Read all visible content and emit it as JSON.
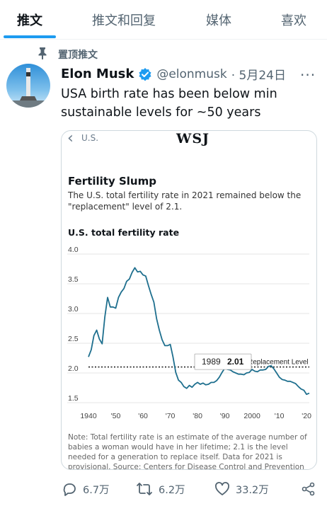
{
  "tabs": [
    {
      "label": "推文",
      "active": true
    },
    {
      "label": "推文和回复",
      "active": false
    },
    {
      "label": "媒体",
      "active": false
    },
    {
      "label": "喜欢",
      "active": false
    }
  ],
  "pinned_label": "置顶推文",
  "tweet": {
    "name": "Elon Musk",
    "handle": "@elonmusk",
    "date": "· 5月24日",
    "more": "···",
    "text": "USA birth rate has been below min sustainable levels for ~50 years"
  },
  "card": {
    "back_label": "U.S.",
    "logo": "WSJ",
    "title": "Fertility Slump",
    "subtitle": "The U.S. total fertility rate in 2021 remained below the \"replacement\" level of 2.1.",
    "ylabel": "U.S. total fertility rate",
    "note": "Note: Total fertility rate is an estimate of the average number of babies a woman would have in her lifetime; 2.1 is the level needed for a generation to replace itself. Data for 2021 is provisional. Source: Centers for Disease Control and Prevention"
  },
  "chart_data": {
    "type": "line",
    "ylabel": "U.S. total fertility rate",
    "ylim": [
      1.5,
      4.0
    ],
    "xlim": [
      1940,
      2021
    ],
    "xticks": [
      "1940",
      "'50",
      "'60",
      "'70",
      "'80",
      "'90",
      "2000",
      "'10",
      "'20"
    ],
    "yticks": [
      "4.0",
      "3.5",
      "3.0",
      "2.5",
      "2.0",
      "1.5"
    ],
    "series": [
      {
        "x": [
          1940,
          1941,
          1942,
          1943,
          1944,
          1945,
          1946,
          1947,
          1948,
          1949,
          1950,
          1951,
          1952,
          1953,
          1954,
          1955,
          1956,
          1957,
          1958,
          1959,
          1960,
          1961,
          1962,
          1963,
          1964,
          1965,
          1966,
          1967,
          1968,
          1969,
          1970,
          1971,
          1972,
          1973,
          1974,
          1975,
          1976,
          1977,
          1978,
          1979,
          1980,
          1981,
          1982,
          1983,
          1984,
          1985,
          1986,
          1987,
          1988,
          1989,
          1990,
          1991,
          1992,
          1993,
          1994,
          1995,
          1996,
          1997,
          1998,
          1999,
          2000,
          2001,
          2002,
          2003,
          2004,
          2005,
          2006,
          2007,
          2008,
          2009,
          2010,
          2011,
          2012,
          2013,
          2014,
          2015,
          2016,
          2017,
          2018,
          2019,
          2020,
          2021
        ],
        "values": [
          2.27,
          2.39,
          2.63,
          2.72,
          2.57,
          2.49,
          2.94,
          3.27,
          3.11,
          3.11,
          3.09,
          3.27,
          3.36,
          3.42,
          3.54,
          3.58,
          3.69,
          3.77,
          3.7,
          3.71,
          3.65,
          3.63,
          3.47,
          3.32,
          3.19,
          2.91,
          2.72,
          2.56,
          2.46,
          2.46,
          2.48,
          2.27,
          2.01,
          1.88,
          1.84,
          1.77,
          1.74,
          1.79,
          1.76,
          1.81,
          1.84,
          1.81,
          1.83,
          1.8,
          1.81,
          1.84,
          1.84,
          1.87,
          1.93,
          2.01,
          2.08,
          2.06,
          2.05,
          2.02,
          2.0,
          1.98,
          1.98,
          1.97,
          2.0,
          2.01,
          2.06,
          2.03,
          2.02,
          2.05,
          2.05,
          2.06,
          2.11,
          2.12,
          2.07,
          2.0,
          1.93,
          1.89,
          1.88,
          1.86,
          1.86,
          1.84,
          1.82,
          1.77,
          1.73,
          1.71,
          1.64,
          1.66
        ]
      }
    ],
    "reference_line": {
      "value": 2.1,
      "label": "Replacement Level"
    },
    "tooltip": {
      "year": "1989",
      "value": "2.01"
    },
    "colors": {
      "line": "#1e6f8e",
      "reference": "#222222",
      "grid": "#dddddd"
    }
  },
  "actions": {
    "replies": "6.7万",
    "retweets": "6.2万",
    "likes": "33.2万"
  },
  "colors": {
    "accent": "#1d9bf0",
    "secondary_text": "#536471"
  }
}
